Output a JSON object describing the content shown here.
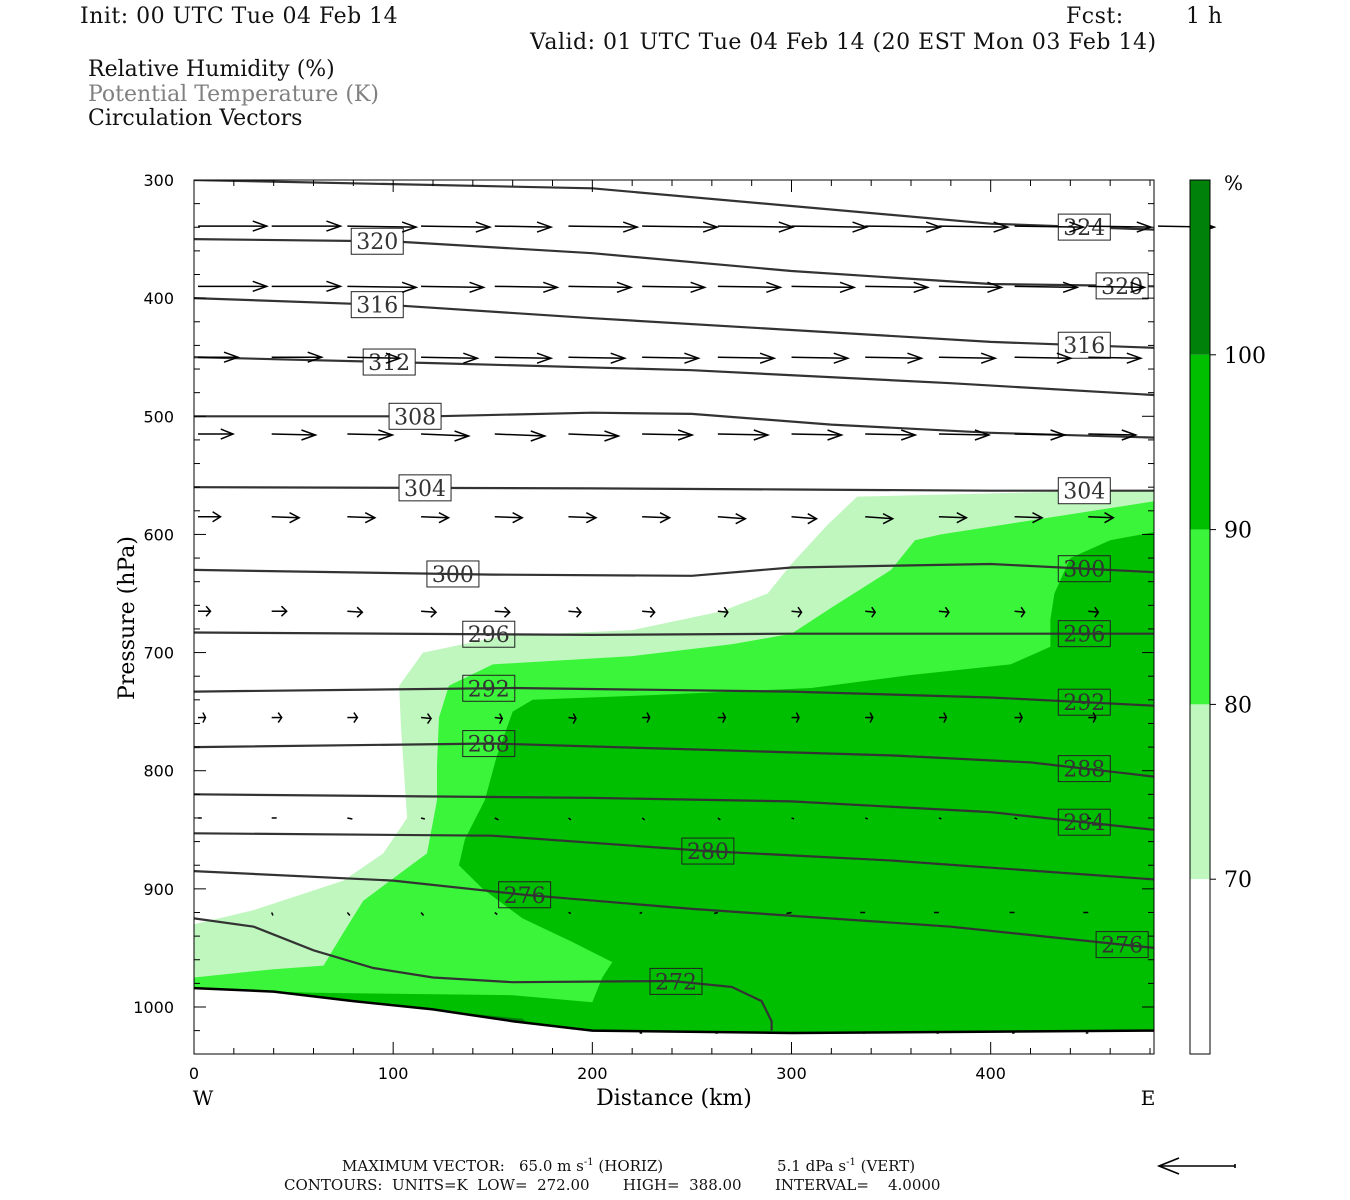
{
  "header": {
    "init": "Init: 00 UTC Tue 04 Feb 14",
    "fcst_label": "Fcst:",
    "fcst_value": "1 h",
    "valid": "Valid: 01 UTC Tue 04 Feb 14 (20 EST Mon 03 Feb 14)"
  },
  "legend": {
    "line1": "Relative Humidity (%)",
    "line2": "Potential Temperature (K)",
    "line3": "Circulation Vectors"
  },
  "footer": {
    "max_vector_label": "MAXIMUM VECTOR:",
    "horiz_value": "65.0 m s",
    "horiz_exp": "-1",
    "horiz_tag": "(HORIZ)",
    "vert_value": "5.1 dPa s",
    "vert_exp": "-1",
    "vert_tag": "(VERT)",
    "contours": "CONTOURS:  UNITS=K  LOW=  272.00       HIGH=  388.00       INTERVAL=    4.0000"
  },
  "colors": {
    "rh_70_80": "#bff7bf",
    "rh_80_90": "#3af53a",
    "rh_90_100": "#00be00",
    "rh_100": "#00820a",
    "contour": "#333333",
    "vector": "#000000"
  },
  "chart_data": {
    "type": "cross-section",
    "xlabel": "Distance (km)",
    "ylabel": "Pressure (hPa)",
    "xlim": [
      0,
      482
    ],
    "ylim": [
      1040,
      300
    ],
    "x_ticks": [
      0,
      100,
      200,
      300,
      400
    ],
    "y_ticks": [
      300,
      400,
      500,
      600,
      700,
      800,
      900,
      1000
    ],
    "x_end_labels": {
      "left": "W",
      "right": "E"
    },
    "colorbar": {
      "unit": "%",
      "levels": [
        70,
        80,
        90,
        100
      ],
      "bands": [
        {
          "from": 60,
          "to": 70,
          "color": "#ffffff"
        },
        {
          "from": 70,
          "to": 80,
          "color": "#bff7bf"
        },
        {
          "from": 80,
          "to": 90,
          "color": "#3af53a"
        },
        {
          "from": 90,
          "to": 100,
          "color": "#00be00"
        },
        {
          "from": 100,
          "to": 110,
          "color": "#00820a"
        }
      ]
    },
    "rh_regions": [
      {
        "level": 70,
        "points": [
          [
            0,
            930
          ],
          [
            30,
            918
          ],
          [
            75,
            893
          ],
          [
            95,
            870
          ],
          [
            107,
            840
          ],
          [
            104,
            765
          ],
          [
            103,
            728
          ],
          [
            115,
            700
          ],
          [
            155,
            686
          ],
          [
            220,
            681
          ],
          [
            265,
            665
          ],
          [
            288,
            650
          ],
          [
            300,
            625
          ],
          [
            318,
            592
          ],
          [
            333,
            568
          ],
          [
            482,
            562
          ],
          [
            482,
            1028
          ],
          [
            0,
            1028
          ]
        ]
      },
      {
        "level": 80,
        "points": [
          [
            0,
            975
          ],
          [
            40,
            968
          ],
          [
            65,
            965
          ],
          [
            75,
            937
          ],
          [
            85,
            910
          ],
          [
            117,
            870
          ],
          [
            122,
            825
          ],
          [
            122,
            795
          ],
          [
            123,
            755
          ],
          [
            128,
            728
          ],
          [
            150,
            710
          ],
          [
            220,
            703
          ],
          [
            270,
            693
          ],
          [
            300,
            684
          ],
          [
            320,
            662
          ],
          [
            350,
            630
          ],
          [
            362,
            605
          ],
          [
            375,
            600
          ],
          [
            482,
            572
          ],
          [
            482,
            1028
          ],
          [
            0,
            1028
          ]
        ]
      },
      {
        "level": 90,
        "points": [
          [
            0,
            1028
          ],
          [
            0,
            985
          ],
          [
            60,
            988
          ],
          [
            160,
            990
          ],
          [
            200,
            996
          ],
          [
            205,
            975
          ],
          [
            210,
            962
          ],
          [
            190,
            945
          ],
          [
            165,
            925
          ],
          [
            145,
            900
          ],
          [
            133,
            880
          ],
          [
            136,
            858
          ],
          [
            146,
            825
          ],
          [
            152,
            788
          ],
          [
            160,
            750
          ],
          [
            170,
            740
          ],
          [
            230,
            736
          ],
          [
            310,
            730
          ],
          [
            360,
            719
          ],
          [
            410,
            710
          ],
          [
            430,
            695
          ],
          [
            430,
            672
          ],
          [
            432,
            650
          ],
          [
            440,
            620
          ],
          [
            460,
            605
          ],
          [
            482,
            598
          ],
          [
            482,
            1028
          ]
        ]
      },
      {
        "level": 100,
        "points": [
          [
            110,
            1008
          ],
          [
            135,
            1005
          ],
          [
            165,
            1010
          ],
          [
            170,
            1018
          ],
          [
            140,
            1021
          ],
          [
            115,
            1016
          ]
        ]
      }
    ],
    "theta_contours": [
      {
        "value": 324,
        "label_x": 447,
        "points": [
          [
            0,
            300
          ],
          [
            200,
            307
          ],
          [
            300,
            322
          ],
          [
            400,
            337
          ],
          [
            482,
            342
          ]
        ]
      },
      {
        "value": 320,
        "label_x": 92,
        "points": [
          [
            0,
            350
          ],
          [
            100,
            352
          ],
          [
            200,
            362
          ],
          [
            300,
            377
          ],
          [
            400,
            388
          ],
          [
            482,
            390
          ]
        ]
      },
      {
        "value": 320,
        "label_x": 466,
        "points": []
      },
      {
        "value": 316,
        "label_x": 92,
        "points": [
          [
            0,
            400
          ],
          [
            100,
            406
          ],
          [
            200,
            417
          ],
          [
            300,
            427
          ],
          [
            400,
            437
          ],
          [
            482,
            442
          ]
        ]
      },
      {
        "value": 316,
        "label_x": 447,
        "points": []
      },
      {
        "value": 312,
        "label_x": 98,
        "points": [
          [
            0,
            450
          ],
          [
            120,
            455
          ],
          [
            250,
            461
          ],
          [
            380,
            472
          ],
          [
            482,
            482
          ]
        ]
      },
      {
        "value": 308,
        "label_x": 111,
        "points": [
          [
            0,
            500
          ],
          [
            120,
            500
          ],
          [
            200,
            497
          ],
          [
            250,
            498
          ],
          [
            320,
            507
          ],
          [
            400,
            514
          ],
          [
            482,
            518
          ]
        ]
      },
      {
        "value": 304,
        "label_x": 116,
        "points": [
          [
            0,
            560
          ],
          [
            200,
            561
          ],
          [
            300,
            562
          ],
          [
            400,
            563
          ],
          [
            482,
            563
          ]
        ]
      },
      {
        "value": 304,
        "label_x": 447,
        "points": []
      },
      {
        "value": 300,
        "label_x": 130,
        "points": [
          [
            0,
            630
          ],
          [
            150,
            634
          ],
          [
            250,
            635
          ],
          [
            300,
            628
          ],
          [
            400,
            625
          ],
          [
            482,
            632
          ]
        ]
      },
      {
        "value": 300,
        "label_x": 447,
        "points": []
      },
      {
        "value": 296,
        "label_x": 148,
        "points": [
          [
            0,
            683
          ],
          [
            200,
            685
          ],
          [
            300,
            684
          ],
          [
            400,
            684
          ],
          [
            482,
            684
          ]
        ]
      },
      {
        "value": 296,
        "label_x": 447,
        "points": []
      },
      {
        "value": 292,
        "label_x": 148,
        "points": [
          [
            0,
            733
          ],
          [
            160,
            730
          ],
          [
            300,
            733
          ],
          [
            400,
            738
          ],
          [
            482,
            745
          ]
        ]
      },
      {
        "value": 292,
        "label_x": 447,
        "points": []
      },
      {
        "value": 288,
        "label_x": 148,
        "points": [
          [
            0,
            780
          ],
          [
            150,
            777
          ],
          [
            250,
            782
          ],
          [
            350,
            787
          ],
          [
            420,
            793
          ],
          [
            482,
            805
          ]
        ]
      },
      {
        "value": 288,
        "label_x": 447,
        "points": []
      },
      {
        "value": 284,
        "label_x": 447,
        "points": [
          [
            0,
            820
          ],
          [
            200,
            823
          ],
          [
            300,
            826
          ],
          [
            400,
            835
          ],
          [
            482,
            850
          ]
        ]
      },
      {
        "value": 280,
        "label_x": 258,
        "points": [
          [
            0,
            853
          ],
          [
            150,
            855
          ],
          [
            258,
            868
          ],
          [
            350,
            876
          ],
          [
            482,
            892
          ]
        ]
      },
      {
        "value": 276,
        "label_x": 166,
        "points": [
          [
            0,
            885
          ],
          [
            100,
            893
          ],
          [
            166,
            905
          ],
          [
            250,
            917
          ],
          [
            380,
            932
          ],
          [
            482,
            950
          ]
        ]
      },
      {
        "value": 276,
        "label_x": 466,
        "points": []
      },
      {
        "value": 272,
        "label_x": 242,
        "points": [
          [
            0,
            925
          ],
          [
            30,
            932
          ],
          [
            60,
            952
          ],
          [
            90,
            967
          ],
          [
            120,
            975
          ],
          [
            160,
            979
          ],
          [
            240,
            978
          ],
          [
            270,
            983
          ],
          [
            285,
            995
          ],
          [
            290,
            1012
          ],
          [
            290,
            1020
          ]
        ]
      }
    ],
    "ground_line": [
      [
        0,
        984
      ],
      [
        40,
        987
      ],
      [
        80,
        995
      ],
      [
        120,
        1002
      ],
      [
        160,
        1012
      ],
      [
        200,
        1020
      ],
      [
        300,
        1022
      ],
      [
        482,
        1020
      ]
    ],
    "vectors": [
      {
        "p": 339,
        "xs": [
          0,
          37,
          75,
          112,
          149,
          186,
          223,
          261,
          298,
          335,
          372,
          410,
          447,
          482
        ],
        "u": [
          55,
          55,
          55,
          55,
          45,
          55,
          60,
          60,
          60,
          60,
          55,
          55,
          50,
          45
        ],
        "w": [
          0,
          0,
          1,
          1,
          1,
          1,
          1,
          1,
          1,
          1,
          1,
          1,
          1,
          1
        ]
      },
      {
        "p": 390,
        "xs": [
          0,
          37,
          75,
          112,
          149,
          186,
          223,
          261,
          298,
          335,
          372,
          410,
          447
        ],
        "u": [
          55,
          55,
          55,
          50,
          50,
          50,
          50,
          50,
          50,
          50,
          50,
          50,
          45
        ],
        "w": [
          0,
          0,
          1,
          1,
          1,
          1,
          1,
          1,
          1,
          1,
          1,
          1,
          1
        ]
      },
      {
        "p": 450,
        "xs": [
          0,
          37,
          75,
          112,
          149,
          186,
          223,
          261,
          298,
          335,
          372,
          410,
          447
        ],
        "u": [
          32,
          40,
          42,
          45,
          45,
          45,
          45,
          45,
          45,
          45,
          45,
          45,
          42
        ],
        "w": [
          0,
          0,
          1,
          1,
          1,
          1,
          1,
          1,
          1,
          1,
          1,
          1,
          1
        ]
      },
      {
        "p": 515,
        "xs": [
          0,
          37,
          75,
          112,
          149,
          186,
          223,
          261,
          298,
          335,
          372,
          410,
          447
        ],
        "u": [
          28,
          35,
          36,
          38,
          40,
          40,
          40,
          40,
          40,
          40,
          40,
          40,
          38
        ],
        "w": [
          0,
          1,
          1,
          2,
          2,
          2,
          1,
          1,
          1,
          1,
          1,
          1,
          1
        ]
      },
      {
        "p": 585,
        "xs": [
          0,
          37,
          75,
          112,
          149,
          186,
          223,
          261,
          298,
          335,
          372,
          410,
          447
        ],
        "u": [
          18,
          22,
          22,
          22,
          22,
          22,
          22,
          22,
          20,
          22,
          22,
          22,
          20
        ],
        "w": [
          0,
          1,
          1,
          1,
          1,
          1,
          1,
          2,
          2,
          2,
          1,
          1,
          1
        ]
      },
      {
        "p": 665,
        "xs": [
          0,
          37,
          75,
          112,
          149,
          186,
          223,
          261,
          298,
          335,
          372,
          410,
          447
        ],
        "u": [
          10,
          12,
          12,
          12,
          12,
          10,
          10,
          8,
          8,
          8,
          8,
          8,
          8
        ],
        "w": [
          0,
          0,
          1,
          1,
          1,
          1,
          1,
          1,
          1,
          1,
          1,
          1,
          1
        ]
      },
      {
        "p": 755,
        "xs": [
          0,
          37,
          75,
          112,
          149,
          186,
          223,
          261,
          298,
          335,
          372,
          410,
          447
        ],
        "u": [
          6,
          8,
          8,
          8,
          6,
          6,
          6,
          6,
          6,
          6,
          6,
          6,
          6
        ],
        "w": [
          0,
          0,
          0,
          1,
          1,
          1,
          0,
          0,
          0,
          0,
          0,
          0,
          0
        ]
      },
      {
        "p": 840,
        "xs": [
          0,
          37,
          75,
          112,
          149,
          186,
          223,
          261,
          298,
          335,
          372,
          410,
          447
        ],
        "u": [
          3,
          4,
          4,
          3,
          3,
          2,
          2,
          2,
          2,
          2,
          2,
          2,
          2
        ],
        "w": [
          0,
          0,
          1,
          1,
          2,
          2,
          2,
          2,
          1,
          1,
          1,
          1,
          1
        ]
      },
      {
        "p": 920,
        "xs": [
          37,
          75,
          112,
          149,
          186,
          223,
          261,
          298,
          335,
          372,
          410,
          447
        ],
        "u": [
          1,
          2,
          2,
          2,
          2,
          -2,
          -3,
          -4,
          -4,
          -4,
          -4,
          -4
        ],
        "w": [
          3,
          3,
          3,
          2,
          1,
          1,
          1,
          1,
          0,
          0,
          0,
          0
        ]
      },
      {
        "p": 1022,
        "xs": [
          223,
          261,
          298,
          335,
          372,
          410,
          447
        ],
        "u": [
          -2,
          -2,
          -2,
          -2,
          -2,
          -2,
          -2
        ],
        "w": [
          0,
          0,
          0,
          0,
          0,
          0,
          0
        ]
      }
    ]
  }
}
